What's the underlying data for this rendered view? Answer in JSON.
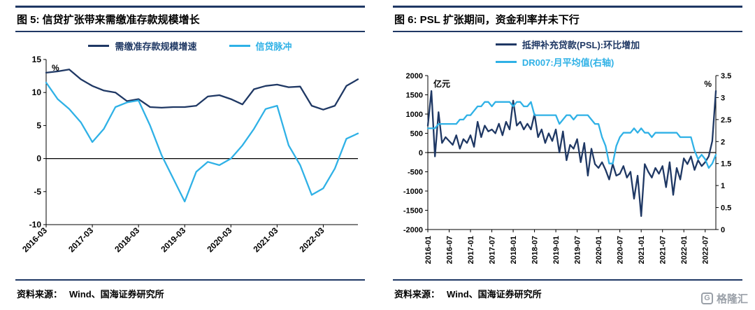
{
  "colors": {
    "navy": "#1f3864",
    "light_blue": "#2fb1e6",
    "watermark_grey": "#9aa0a8"
  },
  "footer": {
    "left_label": "资料来源：",
    "left_text": "Wind、国海证券研究所",
    "right_label": "资料来源：",
    "right_text": "Wind、国海证券研究所"
  },
  "watermark": {
    "icon_letter": "G",
    "text": "格隆汇"
  },
  "chart_data": [
    {
      "type": "line",
      "title": "图 5:  信贷扩张带来需缴准存款规模增长",
      "ylabel": "%",
      "ylim": [
        -10,
        15
      ],
      "yticks": [
        -10,
        -5,
        0,
        5,
        10,
        15
      ],
      "legend_position": "top",
      "grid": false,
      "x": [
        "2016-03",
        "2016-06",
        "2016-09",
        "2016-12",
        "2017-03",
        "2017-06",
        "2017-09",
        "2017-12",
        "2018-03",
        "2018-06",
        "2018-09",
        "2018-12",
        "2019-03",
        "2019-06",
        "2019-09",
        "2019-12",
        "2020-03",
        "2020-06",
        "2020-09",
        "2020-12",
        "2021-03",
        "2021-06",
        "2021-09",
        "2021-12",
        "2022-03",
        "2022-06",
        "2022-09",
        "2022-12"
      ],
      "xticks_shown": [
        "2016-03",
        "2017-03",
        "2018-03",
        "2019-03",
        "2020-03",
        "2021-03",
        "2022-03"
      ],
      "series": [
        {
          "name": "需缴准存款规模增速",
          "color": "#1f3864",
          "values": [
            13.0,
            13.2,
            13.5,
            12.0,
            11.0,
            10.3,
            10.0,
            8.7,
            9.0,
            7.8,
            7.7,
            7.8,
            7.8,
            8.0,
            9.4,
            9.6,
            9.0,
            8.2,
            10.5,
            11.0,
            11.2,
            10.8,
            10.9,
            8.0,
            7.4,
            8.0,
            11.0,
            12.0
          ]
        },
        {
          "name": "信贷脉冲",
          "color": "#2fb1e6",
          "values": [
            11.5,
            9.0,
            7.5,
            5.5,
            2.5,
            4.5,
            7.8,
            8.5,
            8.8,
            5.0,
            0.5,
            -3.0,
            -6.5,
            -2.0,
            -0.5,
            -1.0,
            0.0,
            2.0,
            4.5,
            7.5,
            8.0,
            2.0,
            -1.0,
            -5.5,
            -4.5,
            -1.5,
            3.0,
            3.8
          ]
        }
      ]
    },
    {
      "type": "line",
      "title": "图 6:  PSL 扩张期间，资金利率并未下行",
      "ylabel_left": "亿元",
      "ylabel_right": "%",
      "ylim_left": [
        -2000,
        2000
      ],
      "ylim_right": [
        0,
        3.5
      ],
      "yticks_left": [
        -2000,
        -1500,
        -1000,
        -500,
        0,
        500,
        1000,
        1500,
        2000
      ],
      "yticks_right": [
        0,
        0.5,
        1,
        1.5,
        2,
        2.5,
        3,
        3.5
      ],
      "legend_position": "top",
      "grid": false,
      "x": [
        "2016-01",
        "2016-02",
        "2016-03",
        "2016-04",
        "2016-05",
        "2016-06",
        "2016-07",
        "2016-08",
        "2016-09",
        "2016-10",
        "2016-11",
        "2016-12",
        "2017-01",
        "2017-02",
        "2017-03",
        "2017-04",
        "2017-05",
        "2017-06",
        "2017-07",
        "2017-08",
        "2017-09",
        "2017-10",
        "2017-11",
        "2017-12",
        "2018-01",
        "2018-02",
        "2018-03",
        "2018-04",
        "2018-05",
        "2018-06",
        "2018-07",
        "2018-08",
        "2018-09",
        "2018-10",
        "2018-11",
        "2018-12",
        "2019-01",
        "2019-02",
        "2019-03",
        "2019-04",
        "2019-05",
        "2019-06",
        "2019-07",
        "2019-08",
        "2019-09",
        "2019-10",
        "2019-11",
        "2019-12",
        "2020-01",
        "2020-02",
        "2020-03",
        "2020-04",
        "2020-05",
        "2020-06",
        "2020-07",
        "2020-08",
        "2020-09",
        "2020-10",
        "2020-11",
        "2020-12",
        "2021-01",
        "2021-02",
        "2021-03",
        "2021-04",
        "2021-05",
        "2021-06",
        "2021-07",
        "2021-08",
        "2021-09",
        "2021-10",
        "2021-11",
        "2021-12",
        "2022-01",
        "2022-02",
        "2022-03",
        "2022-04",
        "2022-05",
        "2022-06",
        "2022-07",
        "2022-08",
        "2022-09",
        "2022-10"
      ],
      "xticks_shown": [
        "2016-01",
        "2016-07",
        "2017-01",
        "2017-07",
        "2018-01",
        "2018-07",
        "2019-01",
        "2019-07",
        "2020-01",
        "2020-07",
        "2021-01",
        "2021-07",
        "2022-01",
        "2022-07"
      ],
      "series": [
        {
          "name": "抵押补充贷款(PSL):环比增加",
          "color": "#1f3864",
          "axis": "left",
          "values": [
            700,
            1600,
            -100,
            1050,
            250,
            400,
            300,
            200,
            450,
            100,
            350,
            250,
            450,
            150,
            800,
            400,
            700,
            550,
            600,
            500,
            750,
            450,
            800,
            600,
            1350,
            700,
            800,
            600,
            750,
            600,
            1000,
            400,
            600,
            250,
            500,
            300,
            600,
            0,
            550,
            -200,
            200,
            100,
            350,
            -250,
            250,
            -600,
            100,
            -300,
            -400,
            -250,
            -450,
            -700,
            -300,
            -600,
            -550,
            -350,
            -650,
            -500,
            -1200,
            -600,
            -1650,
            -300,
            -500,
            -650,
            -400,
            -550,
            -350,
            -900,
            -250,
            -1100,
            -400,
            -700,
            -150,
            -300,
            -100,
            -450,
            -200,
            -350,
            -250,
            -100,
            300,
            1600
          ]
        },
        {
          "name": "DR007:月平均值(右轴)",
          "color": "#2fb1e6",
          "axis": "right",
          "values": [
            2.3,
            2.3,
            2.3,
            2.4,
            2.4,
            2.4,
            2.4,
            2.4,
            2.4,
            2.5,
            2.5,
            2.6,
            2.6,
            2.7,
            2.8,
            2.8,
            2.9,
            2.9,
            2.8,
            2.9,
            2.9,
            2.9,
            2.9,
            2.9,
            2.8,
            2.9,
            2.9,
            2.8,
            2.8,
            2.9,
            2.6,
            2.6,
            2.6,
            2.6,
            2.6,
            2.6,
            2.6,
            2.4,
            2.5,
            2.6,
            2.6,
            2.5,
            2.6,
            2.6,
            2.6,
            2.6,
            2.5,
            2.4,
            2.4,
            2.1,
            1.9,
            1.5,
            1.5,
            1.9,
            2.1,
            2.2,
            2.2,
            2.2,
            2.3,
            2.2,
            2.3,
            2.2,
            2.2,
            2.1,
            2.2,
            2.2,
            2.2,
            2.2,
            2.2,
            2.2,
            2.2,
            2.1,
            2.1,
            2.1,
            2.1,
            1.8,
            1.6,
            1.7,
            1.6,
            1.4,
            1.5,
            1.7
          ]
        }
      ]
    }
  ]
}
